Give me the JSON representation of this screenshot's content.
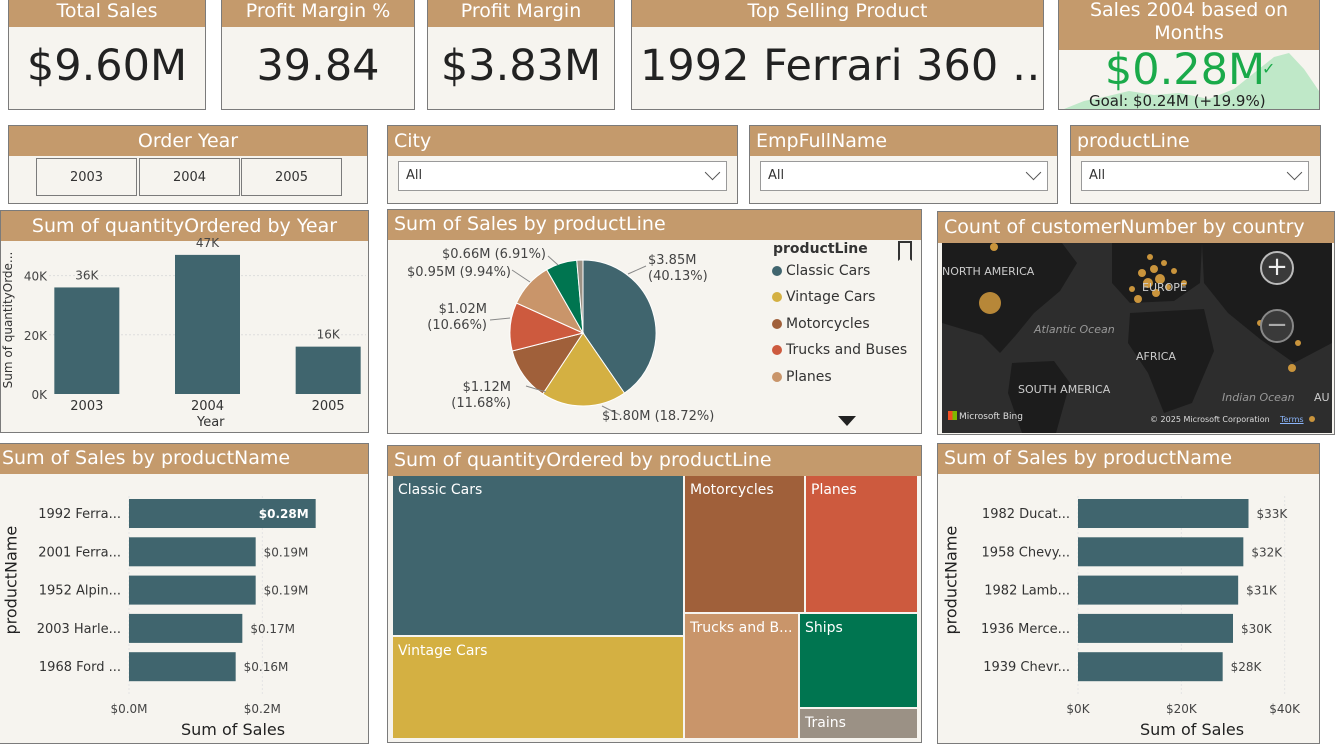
{
  "kpis": {
    "total_sales": {
      "title": "Total Sales",
      "value": "$9.60M"
    },
    "profit_margin_pct": {
      "title": "Profit Margin %",
      "value": "39.84"
    },
    "profit_margin": {
      "title": "Profit Margin",
      "value": "$3.83M"
    },
    "top_product": {
      "title": "Top Selling Product",
      "value": "1992 Ferrari 360 …"
    },
    "sales_2004": {
      "title": "Sales 2004 based on Months",
      "value": "$0.28M",
      "goal": "Goal: $0.24M (+19.9%)"
    }
  },
  "slicers": {
    "order_year": {
      "title": "Order Year",
      "options": [
        "2003",
        "2004",
        "2005"
      ]
    },
    "city": {
      "title": "City",
      "value": "All"
    },
    "employee": {
      "title": "EmpFullName",
      "value": "All"
    },
    "product_line": {
      "title": "productLine",
      "value": "All"
    }
  },
  "qty_by_year": {
    "title": "Sum of quantityOrdered by Year",
    "xlabel": "Year",
    "ylabel": "Sum of quantityOrde...",
    "yticks": [
      "0K",
      "20K",
      "40K"
    ]
  },
  "pie": {
    "title": "Sum of Sales by productLine",
    "legend_title": "productLine",
    "legend": [
      "Classic Cars",
      "Vintage Cars",
      "Motorcycles",
      "Trucks and Buses",
      "Planes"
    ],
    "labels": [
      {
        "value": "$3.85M",
        "pct": "(40.13%)"
      },
      {
        "value": "$1.80M (18.72%)"
      },
      {
        "value": "$1.12M",
        "pct": "(11.68%)"
      },
      {
        "value": "$1.02M",
        "pct": "(10.66%)"
      },
      {
        "value": "$0.95M (9.94%)"
      },
      {
        "value": "$0.66M (6.91%)"
      }
    ]
  },
  "map": {
    "title": "Count of customerNumber by country",
    "labels": [
      "NORTH AMERICA",
      "EUROPE",
      "Atlantic Ocean",
      "AFRICA",
      "SOUTH AMERICA",
      "Indian Ocean",
      "AU"
    ],
    "brand": "Microsoft Bing",
    "copyright": "© 2025 Microsoft Corporation",
    "terms": "Terms",
    "zoom_in": "+",
    "zoom_out": "−"
  },
  "bar_left": {
    "title": "Sum of Sales by productName",
    "ylabel": "productName",
    "xlabel": "Sum of Sales",
    "xticks": [
      "$0.0M",
      "$0.2M"
    ],
    "rows": [
      {
        "name": "1992 Ferra...",
        "label": "$0.28M"
      },
      {
        "name": "2001 Ferra...",
        "label": "$0.19M"
      },
      {
        "name": "1952 Alpin...",
        "label": "$0.19M"
      },
      {
        "name": "2003 Harle...",
        "label": "$0.17M"
      },
      {
        "name": "1968 Ford ...",
        "label": "$0.16M"
      }
    ]
  },
  "treemap": {
    "title": "Sum of quantityOrdered by productLine",
    "tiles": [
      "Classic Cars",
      "Vintage Cars",
      "Motorcycles",
      "Planes",
      "Trucks and B...",
      "Ships",
      "Trains"
    ]
  },
  "bar_right": {
    "title": "Sum of Sales by productName",
    "ylabel": "productName",
    "xlabel": "Sum of Sales",
    "xticks": [
      "$0K",
      "$20K",
      "$40K"
    ],
    "rows": [
      {
        "name": "1982 Ducat...",
        "label": "$33K"
      },
      {
        "name": "1958 Chevy...",
        "label": "$32K"
      },
      {
        "name": "1982 Lamb...",
        "label": "$31K"
      },
      {
        "name": "1936 Merce...",
        "label": "$30K"
      },
      {
        "name": "1939 Chevr...",
        "label": "$28K"
      }
    ]
  },
  "colors": {
    "accent": "#c49a6c",
    "teal": "#40656e",
    "gold": "#d4b042",
    "brown": "#a0603a",
    "red": "#cd5a3e",
    "tan": "#c9956a",
    "green": "#007550",
    "grey": "#9b9185",
    "kpi_green": "#1aaa4a"
  },
  "chart_data": [
    {
      "type": "bar",
      "title": "Sum of quantityOrdered by Year",
      "categories": [
        "2003",
        "2004",
        "2005"
      ],
      "values": [
        36,
        47,
        16
      ],
      "value_labels": [
        "36K",
        "47K",
        "16K"
      ],
      "unit": "K",
      "ylim": [
        0,
        50
      ],
      "xlabel": "Year",
      "ylabel": "Sum of quantityOrde..."
    },
    {
      "type": "pie",
      "title": "Sum of Sales by productLine",
      "categories": [
        "Classic Cars",
        "Vintage Cars",
        "Motorcycles",
        "Trucks and Buses",
        "Planes",
        "Ships",
        "Trains"
      ],
      "values": [
        3.85,
        1.8,
        1.12,
        1.02,
        0.95,
        0.66,
        0.13
      ],
      "percents": [
        40.13,
        18.72,
        11.68,
        10.66,
        9.94,
        6.91,
        1.96
      ]
    },
    {
      "type": "bar",
      "title": "Sum of Sales by productName",
      "categories": [
        "1992 Ferra...",
        "2001 Ferra...",
        "1952 Alpin...",
        "2003 Harle...",
        "1968 Ford ..."
      ],
      "values": [
        0.28,
        0.19,
        0.19,
        0.17,
        0.16
      ],
      "xlim": [
        0,
        0.3
      ],
      "unit": "$M"
    },
    {
      "type": "treemap",
      "title": "Sum of quantityOrdered by productLine",
      "categories": [
        "Classic Cars",
        "Vintage Cars",
        "Motorcycles",
        "Planes",
        "Trucks and Buses",
        "Ships",
        "Trains"
      ]
    },
    {
      "type": "bar",
      "title": "Sum of Sales by productName",
      "categories": [
        "1982 Ducat...",
        "1958 Chevy...",
        "1982 Lamb...",
        "1936 Merce...",
        "1939 Chevr..."
      ],
      "values": [
        33,
        32,
        31,
        30,
        28
      ],
      "xlim": [
        0,
        42
      ],
      "unit": "$K"
    }
  ]
}
